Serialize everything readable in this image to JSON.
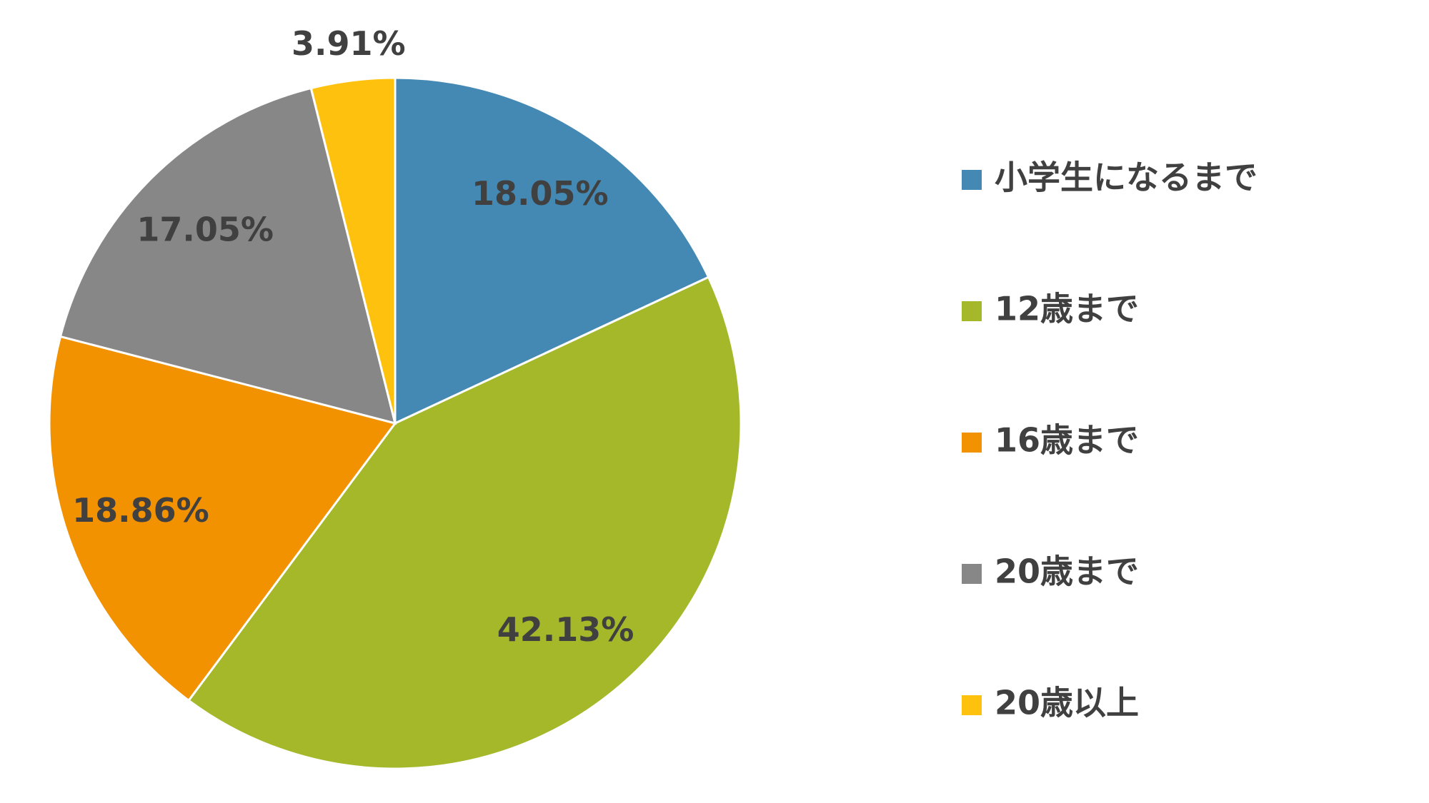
{
  "chart_data": {
    "type": "pie",
    "categories": [
      "小学生になるまで",
      "12歳まで",
      "16歳まで",
      "20歳まで",
      "20歳以上"
    ],
    "values": [
      18.05,
      42.13,
      18.86,
      17.05,
      3.91
    ],
    "value_labels": [
      "18.05%",
      "42.13%",
      "18.86%",
      "17.05%",
      "3.91%"
    ],
    "colors": [
      "#4489b4",
      "#a5b82a",
      "#f39200",
      "#878787",
      "#fec20e"
    ],
    "legend": "right"
  }
}
